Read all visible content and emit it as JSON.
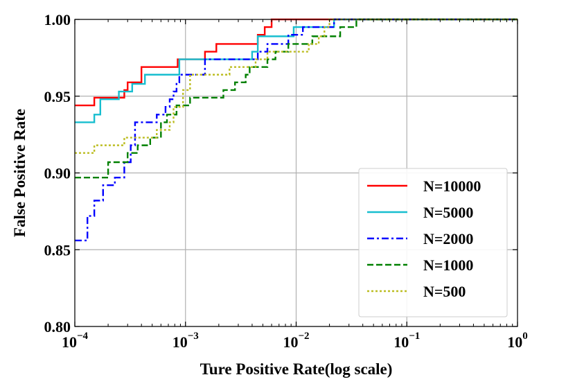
{
  "chart_data": {
    "type": "line",
    "title": "",
    "xlabel": "Ture Positive Rate(log scale)",
    "ylabel": "False Positive Rate",
    "xscale": "log",
    "xlim": [
      0.0001,
      1
    ],
    "ylim": [
      0.8,
      1.0
    ],
    "grid": true,
    "legend_position": "lower-right",
    "x_ticks": [
      {
        "base": "10",
        "exp": "−4",
        "value": 0.0001
      },
      {
        "base": "10",
        "exp": "−3",
        "value": 0.001
      },
      {
        "base": "10",
        "exp": "−2",
        "value": 0.01
      },
      {
        "base": "10",
        "exp": "−1",
        "value": 0.1
      },
      {
        "base": "10",
        "exp": "0",
        "value": 1
      }
    ],
    "y_ticks": [
      {
        "label": "0.80",
        "value": 0.8
      },
      {
        "label": "0.85",
        "value": 0.85
      },
      {
        "label": "0.90",
        "value": 0.9
      },
      {
        "label": "0.95",
        "value": 0.95
      },
      {
        "label": "1.00",
        "value": 1.0
      }
    ],
    "series": [
      {
        "name": "N=10000",
        "color": "#ff0000",
        "dash": "solid",
        "points": [
          [
            0.0001,
            0.944
          ],
          [
            0.00015,
            0.944
          ],
          [
            0.00015,
            0.949
          ],
          [
            0.00028,
            0.949
          ],
          [
            0.00028,
            0.954
          ],
          [
            0.0003,
            0.954
          ],
          [
            0.0003,
            0.959
          ],
          [
            0.0004,
            0.959
          ],
          [
            0.0004,
            0.969
          ],
          [
            0.00085,
            0.969
          ],
          [
            0.00085,
            0.974
          ],
          [
            0.0015,
            0.974
          ],
          [
            0.0015,
            0.979
          ],
          [
            0.0019,
            0.979
          ],
          [
            0.0019,
            0.984
          ],
          [
            0.0045,
            0.984
          ],
          [
            0.0045,
            0.99
          ],
          [
            0.0052,
            0.99
          ],
          [
            0.0052,
            0.995
          ],
          [
            0.006,
            0.995
          ],
          [
            0.006,
            1.0
          ],
          [
            1.0,
            1.0
          ]
        ]
      },
      {
        "name": "N=5000",
        "color": "#17becf",
        "dash": "solid",
        "points": [
          [
            0.0001,
            0.933
          ],
          [
            0.00015,
            0.933
          ],
          [
            0.00015,
            0.938
          ],
          [
            0.00017,
            0.938
          ],
          [
            0.00017,
            0.948
          ],
          [
            0.00025,
            0.948
          ],
          [
            0.00025,
            0.953
          ],
          [
            0.00033,
            0.953
          ],
          [
            0.00033,
            0.958
          ],
          [
            0.00043,
            0.958
          ],
          [
            0.00043,
            0.964
          ],
          [
            0.00088,
            0.964
          ],
          [
            0.00088,
            0.974
          ],
          [
            0.004,
            0.974
          ],
          [
            0.004,
            0.979
          ],
          [
            0.0045,
            0.979
          ],
          [
            0.0045,
            0.989
          ],
          [
            0.0095,
            0.989
          ],
          [
            0.0095,
            0.995
          ],
          [
            0.022,
            0.995
          ],
          [
            0.022,
            1.0
          ],
          [
            1.0,
            1.0
          ]
        ]
      },
      {
        "name": "N=2000",
        "color": "#0000ff",
        "dash": "dashdot",
        "points": [
          [
            0.0001,
            0.856
          ],
          [
            0.00013,
            0.856
          ],
          [
            0.00013,
            0.872
          ],
          [
            0.00015,
            0.872
          ],
          [
            0.00015,
            0.882
          ],
          [
            0.00018,
            0.882
          ],
          [
            0.00018,
            0.892
          ],
          [
            0.00023,
            0.892
          ],
          [
            0.00023,
            0.897
          ],
          [
            0.00028,
            0.897
          ],
          [
            0.00028,
            0.907
          ],
          [
            0.00032,
            0.907
          ],
          [
            0.00032,
            0.918
          ],
          [
            0.00035,
            0.918
          ],
          [
            0.00035,
            0.933
          ],
          [
            0.00055,
            0.933
          ],
          [
            0.00055,
            0.938
          ],
          [
            0.00066,
            0.938
          ],
          [
            0.00066,
            0.943
          ],
          [
            0.00072,
            0.943
          ],
          [
            0.00072,
            0.948
          ],
          [
            0.00078,
            0.948
          ],
          [
            0.00078,
            0.953
          ],
          [
            0.00083,
            0.953
          ],
          [
            0.00083,
            0.959
          ],
          [
            0.00088,
            0.959
          ],
          [
            0.00088,
            0.964
          ],
          [
            0.0015,
            0.964
          ],
          [
            0.0015,
            0.974
          ],
          [
            0.0045,
            0.974
          ],
          [
            0.0045,
            0.979
          ],
          [
            0.0055,
            0.979
          ],
          [
            0.0055,
            0.984
          ],
          [
            0.0085,
            0.984
          ],
          [
            0.0085,
            0.99
          ],
          [
            0.0115,
            0.99
          ],
          [
            0.0115,
            0.995
          ],
          [
            0.022,
            0.995
          ],
          [
            0.022,
            1.0
          ],
          [
            1.0,
            1.0
          ]
        ]
      },
      {
        "name": "N=1000",
        "color": "#008000",
        "dash": "dashed",
        "points": [
          [
            0.0001,
            0.897
          ],
          [
            0.0002,
            0.897
          ],
          [
            0.0002,
            0.907
          ],
          [
            0.0003,
            0.907
          ],
          [
            0.0003,
            0.913
          ],
          [
            0.00037,
            0.913
          ],
          [
            0.00037,
            0.918
          ],
          [
            0.00048,
            0.918
          ],
          [
            0.00048,
            0.923
          ],
          [
            0.0006,
            0.923
          ],
          [
            0.0006,
            0.933
          ],
          [
            0.00068,
            0.933
          ],
          [
            0.00068,
            0.938
          ],
          [
            0.00083,
            0.938
          ],
          [
            0.00083,
            0.944
          ],
          [
            0.0011,
            0.944
          ],
          [
            0.0011,
            0.949
          ],
          [
            0.0022,
            0.949
          ],
          [
            0.0022,
            0.954
          ],
          [
            0.0028,
            0.954
          ],
          [
            0.0028,
            0.959
          ],
          [
            0.0035,
            0.959
          ],
          [
            0.0035,
            0.964
          ],
          [
            0.0038,
            0.964
          ],
          [
            0.0038,
            0.969
          ],
          [
            0.0055,
            0.969
          ],
          [
            0.0055,
            0.974
          ],
          [
            0.0065,
            0.974
          ],
          [
            0.0065,
            0.979
          ],
          [
            0.0085,
            0.979
          ],
          [
            0.0085,
            0.984
          ],
          [
            0.014,
            0.984
          ],
          [
            0.014,
            0.989
          ],
          [
            0.025,
            0.989
          ],
          [
            0.025,
            0.995
          ],
          [
            0.035,
            0.995
          ],
          [
            0.035,
            1.0
          ],
          [
            1.0,
            1.0
          ]
        ]
      },
      {
        "name": "N=500",
        "color": "#bcbd22",
        "dash": "dotted",
        "points": [
          [
            0.0001,
            0.913
          ],
          [
            0.00015,
            0.913
          ],
          [
            0.00015,
            0.918
          ],
          [
            0.00028,
            0.918
          ],
          [
            0.00028,
            0.923
          ],
          [
            0.00055,
            0.923
          ],
          [
            0.00055,
            0.928
          ],
          [
            0.00072,
            0.928
          ],
          [
            0.00072,
            0.933
          ],
          [
            0.00078,
            0.933
          ],
          [
            0.00078,
            0.943
          ],
          [
            0.00095,
            0.943
          ],
          [
            0.00095,
            0.954
          ],
          [
            0.0011,
            0.954
          ],
          [
            0.0011,
            0.964
          ],
          [
            0.0025,
            0.964
          ],
          [
            0.0025,
            0.969
          ],
          [
            0.0043,
            0.969
          ],
          [
            0.0043,
            0.974
          ],
          [
            0.0055,
            0.974
          ],
          [
            0.0055,
            0.979
          ],
          [
            0.013,
            0.979
          ],
          [
            0.013,
            0.984
          ],
          [
            0.016,
            0.984
          ],
          [
            0.016,
            0.989
          ],
          [
            0.018,
            0.989
          ],
          [
            0.018,
            0.995
          ],
          [
            0.02,
            0.995
          ],
          [
            0.02,
            1.0
          ],
          [
            1.0,
            1.0
          ]
        ]
      }
    ]
  }
}
